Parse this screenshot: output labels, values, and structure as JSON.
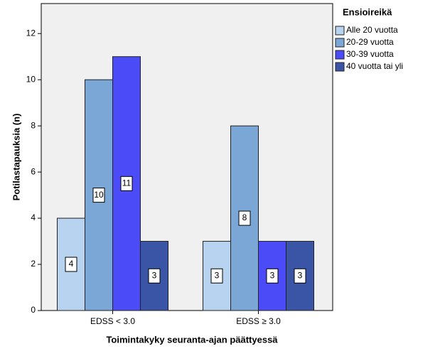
{
  "chart_data": {
    "type": "bar",
    "ylabel": "Potilastapauksia (n)",
    "xlabel": "Toimintakyky seuranta-ajan päättyessä",
    "legend_title": "Ensioireikä",
    "legend_position": "right",
    "categories": [
      "EDSS < 3.0",
      "EDSS ≥ 3.0"
    ],
    "series": [
      {
        "name": "Alle 20 vuotta",
        "color": "#b7d3ef",
        "values": [
          4,
          3
        ]
      },
      {
        "name": "20-29 vuotta",
        "color": "#7ba7d7",
        "values": [
          10,
          8
        ]
      },
      {
        "name": "30-39 vuotta",
        "color": "#4b4bf7",
        "values": [
          11,
          3
        ]
      },
      {
        "name": "40 vuotta tai yli",
        "color": "#3a55a6",
        "values": [
          3,
          3
        ]
      }
    ],
    "ylim": [
      0,
      13.3
    ],
    "yticks": [
      0,
      2,
      4,
      6,
      8,
      10,
      12
    ]
  }
}
